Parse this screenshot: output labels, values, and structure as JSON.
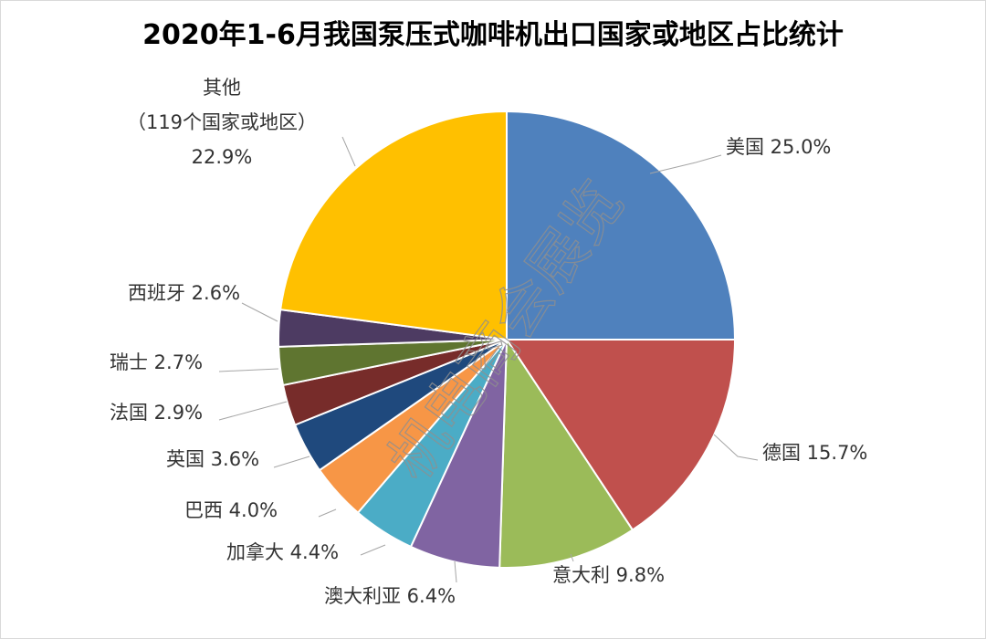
{
  "chart_data": {
    "type": "pie",
    "title": "2020年1-6月我国泵压式咖啡机出口国家或地区占比统计",
    "unit": "%",
    "slices": [
      {
        "name": "美国",
        "value": 25.0,
        "label": "美国 25.0%",
        "color": "#4F81BD"
      },
      {
        "name": "德国",
        "value": 15.7,
        "label": "德国 15.7%",
        "color": "#C0504D"
      },
      {
        "name": "意大利",
        "value": 9.8,
        "label": "意大利 9.8%",
        "color": "#9BBB59"
      },
      {
        "name": "澳大利亚",
        "value": 6.4,
        "label": "澳大利亚 6.4%",
        "color": "#8064A2"
      },
      {
        "name": "加拿大",
        "value": 4.4,
        "label": "加拿大 4.4%",
        "color": "#4BACC6"
      },
      {
        "name": "巴西",
        "value": 4.0,
        "label": "巴西 4.0%",
        "color": "#F79646"
      },
      {
        "name": "英国",
        "value": 3.6,
        "label": "英国 3.6%",
        "color": "#1F497D"
      },
      {
        "name": "法国",
        "value": 2.9,
        "label": "法国 2.9%",
        "color": "#772C2A"
      },
      {
        "name": "瑞士",
        "value": 2.7,
        "label": "瑞士 2.7%",
        "color": "#5F7530"
      },
      {
        "name": "西班牙",
        "value": 2.6,
        "label": "西班牙 2.6%",
        "color": "#4D3B62"
      },
      {
        "name": "其他",
        "value": 22.9,
        "label_lines": [
          "其他",
          "（119个国家或地区）",
          "22.9%"
        ],
        "color": "#FFC000"
      }
    ]
  },
  "watermark": "机电商会展览"
}
